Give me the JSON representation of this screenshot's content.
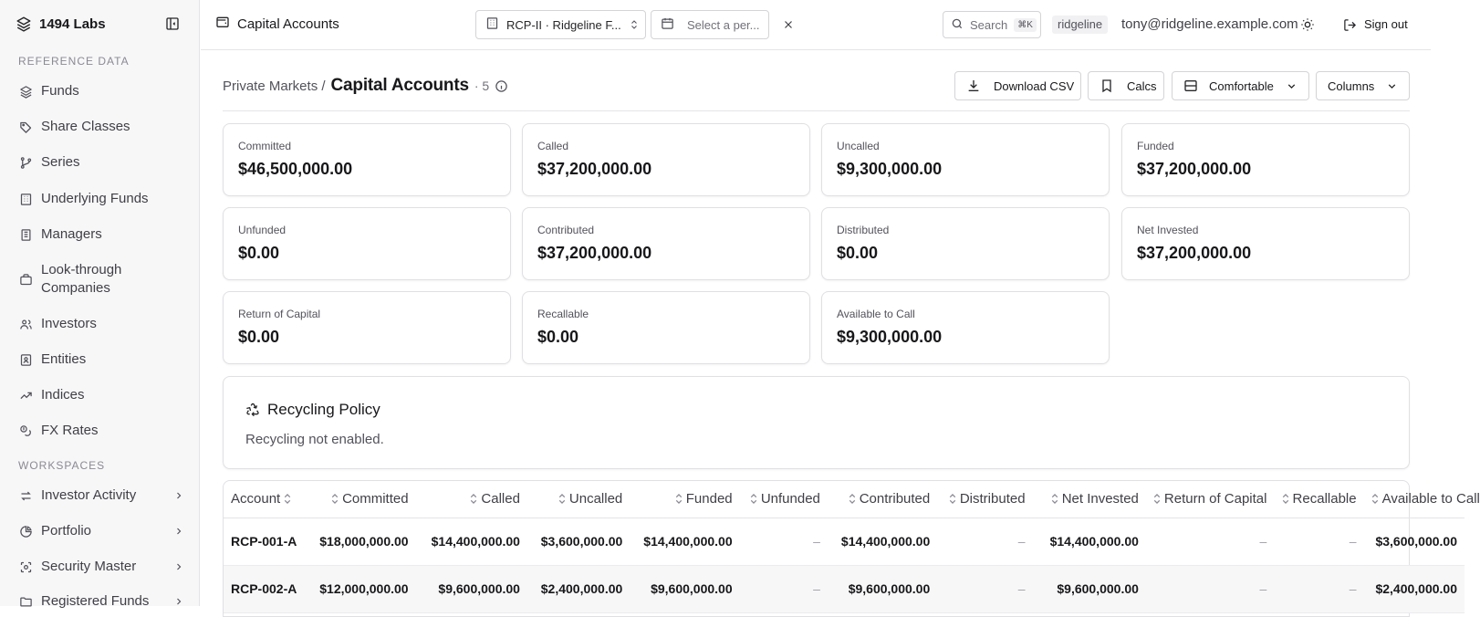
{
  "sidebar": {
    "brand": "1494 Labs",
    "sections": {
      "reference": "REFERENCE DATA",
      "workspaces": "WORKSPACES"
    },
    "reference_items": [
      {
        "label": "Funds",
        "icon": "layers-icon"
      },
      {
        "label": "Share Classes",
        "icon": "tags-icon"
      },
      {
        "label": "Series",
        "icon": "git-branch-icon"
      },
      {
        "label": "Underlying Funds",
        "icon": "building-icon"
      },
      {
        "label": "Managers",
        "icon": "office-icon"
      },
      {
        "label": "Look-through Companies",
        "icon": "briefcase-icon"
      },
      {
        "label": "Investors",
        "icon": "users-icon"
      },
      {
        "label": "Entities",
        "icon": "badge-icon"
      },
      {
        "label": "Indices",
        "icon": "trending-up-icon"
      },
      {
        "label": "FX Rates",
        "icon": "currency-icon"
      }
    ],
    "workspace_items": [
      {
        "label": "Investor Activity",
        "icon": "arrows-icon"
      },
      {
        "label": "Portfolio",
        "icon": "pie-icon"
      },
      {
        "label": "Security Master",
        "icon": "scan-icon"
      },
      {
        "label": "Registered Funds",
        "icon": "folder-icon"
      }
    ]
  },
  "topbar": {
    "title": "Capital Accounts",
    "fund_select": "RCP-II · Ridgeline F...",
    "period_placeholder": "Select a per...",
    "search_label": "Search",
    "search_shortcut": "⌘K",
    "tenant": "ridgeline",
    "email": "tony@ridgeline.example.com",
    "sign_out": "Sign out"
  },
  "page": {
    "breadcrumb_parent": "Private Markets /",
    "title": "Capital Accounts",
    "count": "· 5",
    "actions": {
      "download": "Download CSV",
      "calcs": "Calcs",
      "density": "Comfortable",
      "columns": "Columns"
    }
  },
  "summary_cards": [
    {
      "label": "Committed",
      "value": "$46,500,000.00"
    },
    {
      "label": "Called",
      "value": "$37,200,000.00"
    },
    {
      "label": "Uncalled",
      "value": "$9,300,000.00"
    },
    {
      "label": "Funded",
      "value": "$37,200,000.00"
    },
    {
      "label": "Unfunded",
      "value": "$0.00"
    },
    {
      "label": "Contributed",
      "value": "$37,200,000.00"
    },
    {
      "label": "Distributed",
      "value": "$0.00"
    },
    {
      "label": "Net Invested",
      "value": "$37,200,000.00"
    },
    {
      "label": "Return of Capital",
      "value": "$0.00"
    },
    {
      "label": "Recallable",
      "value": "$0.00"
    },
    {
      "label": "Available to Call",
      "value": "$9,300,000.00"
    }
  ],
  "recycling": {
    "title": "Recycling Policy",
    "status": "Recycling not enabled."
  },
  "table": {
    "columns": [
      "Account",
      "Committed",
      "Called",
      "Uncalled",
      "Funded",
      "Unfunded",
      "Contributed",
      "Distributed",
      "Net Invested",
      "Return of Capital",
      "Recallable",
      "Available to Call"
    ],
    "rows": [
      [
        "RCP-001-A",
        "$18,000,000.00",
        "$14,400,000.00",
        "$3,600,000.00",
        "$14,400,000.00",
        "–",
        "$14,400,000.00",
        "–",
        "$14,400,000.00",
        "–",
        "–",
        "$3,600,000.00"
      ],
      [
        "RCP-002-A",
        "$12,000,000.00",
        "$9,600,000.00",
        "$2,400,000.00",
        "$9,600,000.00",
        "–",
        "$9,600,000.00",
        "–",
        "$9,600,000.00",
        "–",
        "–",
        "$2,400,000.00"
      ]
    ]
  }
}
